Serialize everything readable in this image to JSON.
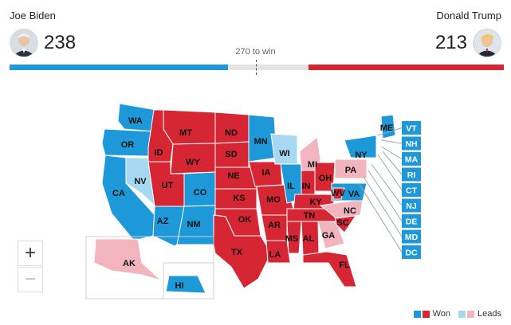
{
  "candidates": {
    "left": {
      "name": "Joe Biden",
      "votes": "238",
      "avatar_icon": "candidate-portrait"
    },
    "right": {
      "name": "Donald Trump",
      "votes": "213",
      "avatar_icon": "candidate-portrait"
    }
  },
  "progress": {
    "win_label": "270 to win",
    "total": 538,
    "dem": 238,
    "rep": 213
  },
  "colors": {
    "dem_won": "#1d98d8",
    "rep_won": "#d62533",
    "dem_leads": "#a6d9f1",
    "rep_leads": "#f2b5bd",
    "track": "#e3e3e3"
  },
  "map": {
    "states": [
      {
        "abbr": "WA",
        "party": "dem_won"
      },
      {
        "abbr": "OR",
        "party": "dem_won"
      },
      {
        "abbr": "CA",
        "party": "dem_won"
      },
      {
        "abbr": "NV",
        "party": "dem_leads"
      },
      {
        "abbr": "ID",
        "party": "rep_won"
      },
      {
        "abbr": "MT",
        "party": "rep_won"
      },
      {
        "abbr": "WY",
        "party": "rep_won"
      },
      {
        "abbr": "UT",
        "party": "rep_won"
      },
      {
        "abbr": "AZ",
        "party": "dem_won"
      },
      {
        "abbr": "CO",
        "party": "dem_won"
      },
      {
        "abbr": "NM",
        "party": "dem_won"
      },
      {
        "abbr": "ND",
        "party": "rep_won"
      },
      {
        "abbr": "SD",
        "party": "rep_won"
      },
      {
        "abbr": "NE",
        "party": "rep_won"
      },
      {
        "abbr": "KS",
        "party": "rep_won"
      },
      {
        "abbr": "OK",
        "party": "rep_won"
      },
      {
        "abbr": "TX",
        "party": "rep_won"
      },
      {
        "abbr": "MN",
        "party": "dem_won"
      },
      {
        "abbr": "IA",
        "party": "rep_won"
      },
      {
        "abbr": "MO",
        "party": "rep_won"
      },
      {
        "abbr": "AR",
        "party": "rep_won"
      },
      {
        "abbr": "LA",
        "party": "rep_won"
      },
      {
        "abbr": "WI",
        "party": "dem_leads"
      },
      {
        "abbr": "IL",
        "party": "dem_won"
      },
      {
        "abbr": "MI",
        "party": "rep_leads"
      },
      {
        "abbr": "IN",
        "party": "rep_won"
      },
      {
        "abbr": "OH",
        "party": "rep_won"
      },
      {
        "abbr": "KY",
        "party": "rep_won"
      },
      {
        "abbr": "TN",
        "party": "rep_won"
      },
      {
        "abbr": "MS",
        "party": "rep_won"
      },
      {
        "abbr": "AL",
        "party": "rep_won"
      },
      {
        "abbr": "GA",
        "party": "rep_leads"
      },
      {
        "abbr": "FL",
        "party": "rep_won"
      },
      {
        "abbr": "SC",
        "party": "rep_won"
      },
      {
        "abbr": "NC",
        "party": "rep_leads"
      },
      {
        "abbr": "VA",
        "party": "dem_won"
      },
      {
        "abbr": "WV",
        "party": "rep_won"
      },
      {
        "abbr": "PA",
        "party": "rep_leads"
      },
      {
        "abbr": "NY",
        "party": "dem_won"
      },
      {
        "abbr": "ME",
        "party": "dem_won"
      },
      {
        "abbr": "AK",
        "party": "rep_leads"
      },
      {
        "abbr": "HI",
        "party": "dem_won"
      }
    ],
    "east_tiles": [
      "VT",
      "NH",
      "MA",
      "RI",
      "CT",
      "NJ",
      "DE",
      "MD",
      "DC"
    ]
  },
  "zoom": {
    "in_label": "+",
    "out_label": "−"
  },
  "legend": {
    "won_label": "Won",
    "leads_label": "Leads"
  }
}
